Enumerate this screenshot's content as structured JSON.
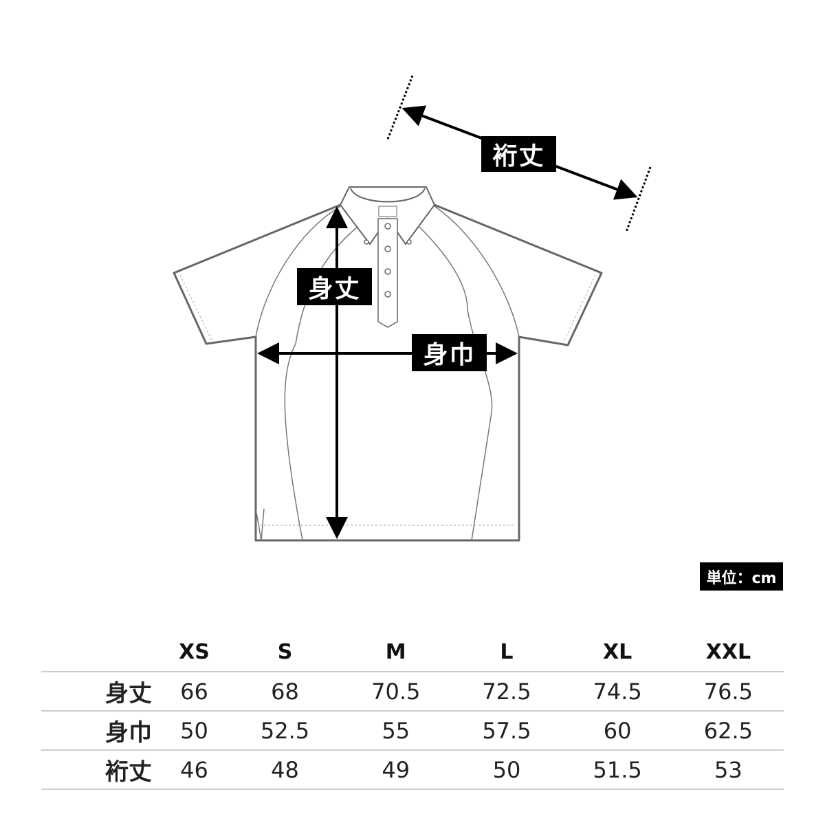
{
  "diagram": {
    "labels": {
      "length": "身丈",
      "width": "身巾",
      "sleeve": "裄丈"
    },
    "unit": "単位：cm",
    "outline_color": "#666666",
    "arrow_color": "#000000"
  },
  "table": {
    "sizes": [
      "XS",
      "S",
      "M",
      "L",
      "XL",
      "XXL"
    ],
    "rows": [
      {
        "label": "身丈",
        "values": [
          "66",
          "68",
          "70.5",
          "72.5",
          "74.5",
          "76.5"
        ]
      },
      {
        "label": "身巾",
        "values": [
          "50",
          "52.5",
          "55",
          "57.5",
          "60",
          "62.5"
        ]
      },
      {
        "label": "裄丈",
        "values": [
          "46",
          "48",
          "49",
          "50",
          "51.5",
          "53"
        ]
      }
    ]
  }
}
